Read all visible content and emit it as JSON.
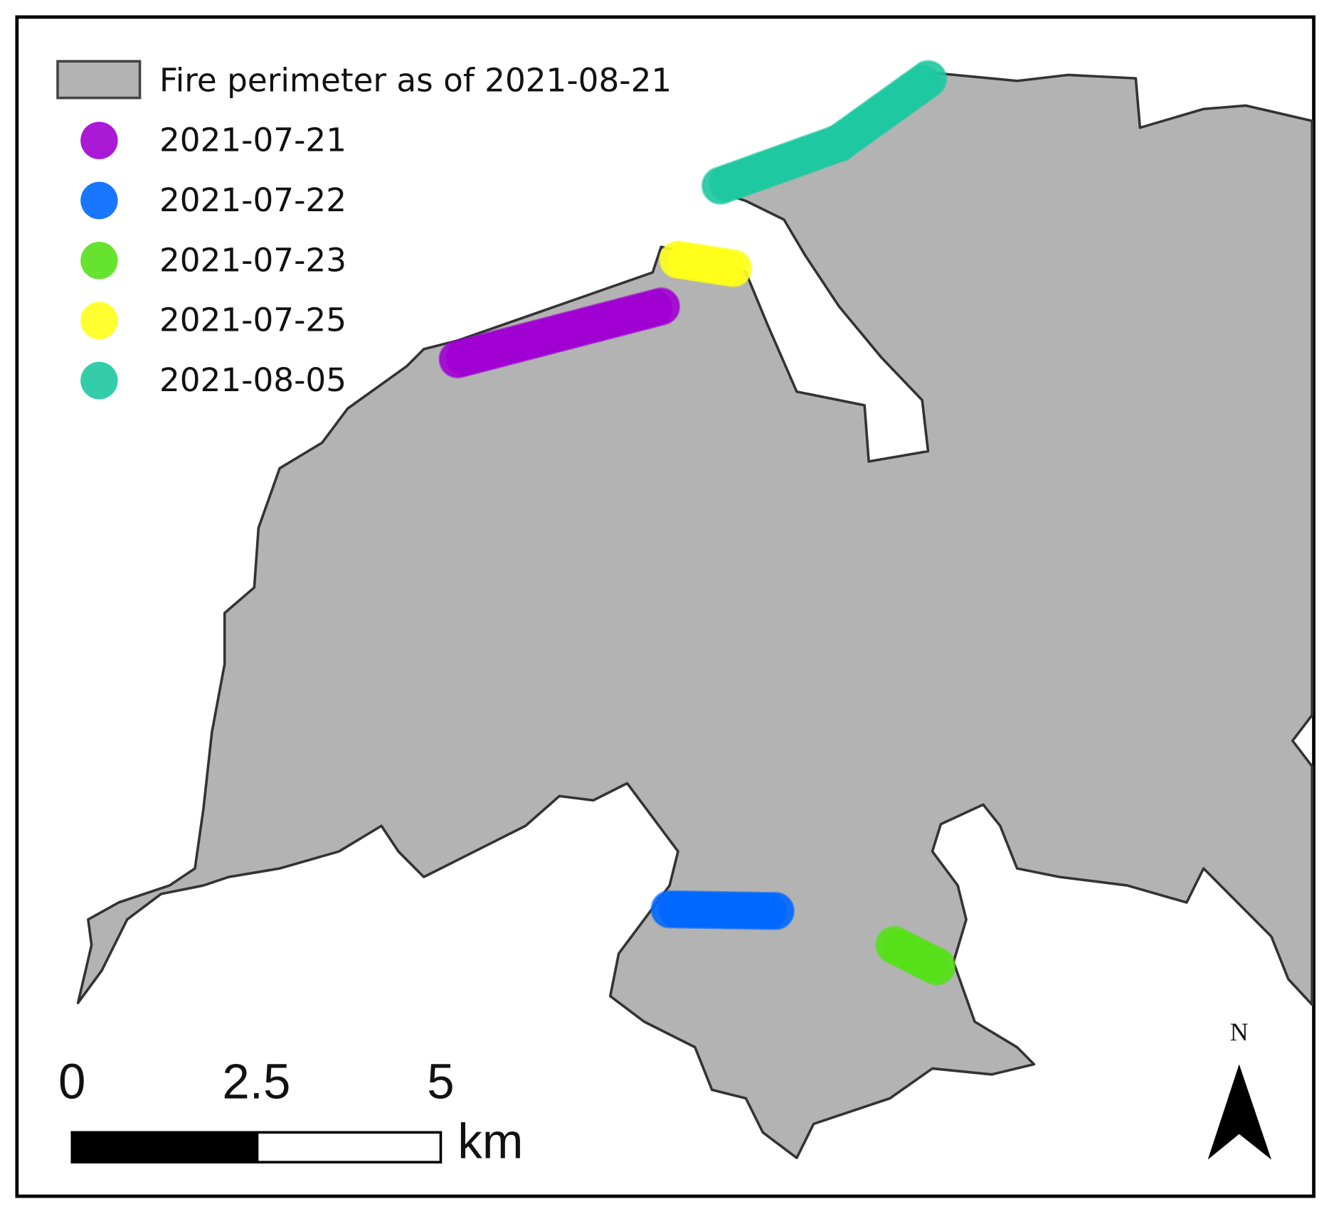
{
  "legend": {
    "perimeter": {
      "label": "Fire perimeter as of 2021-08-21",
      "color": "#b3b3b3"
    },
    "dates": [
      {
        "label": "2021-07-21",
        "color": "#a000d2"
      },
      {
        "label": "2021-07-22",
        "color": "#0068ff"
      },
      {
        "label": "2021-07-23",
        "color": "#55e018"
      },
      {
        "label": "2021-07-25",
        "color": "#ffff1a"
      },
      {
        "label": "2021-08-05",
        "color": "#1ec8a0"
      }
    ]
  },
  "scale_bar": {
    "ticks": [
      0,
      2.5,
      5
    ],
    "unit": "km"
  },
  "north_arrow": "N"
}
